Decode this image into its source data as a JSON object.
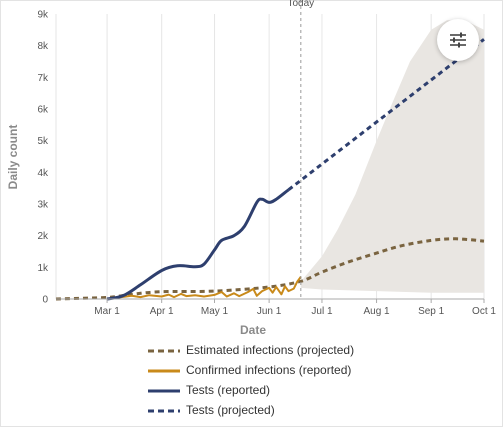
{
  "chart_data": {
    "type": "line",
    "xlabel": "Date",
    "ylabel": "Daily count",
    "x_range": [
      "2020-02-01",
      "2020-10-01"
    ],
    "ylim": [
      0,
      9000
    ],
    "grid": "vertical",
    "legend_position": "bottom",
    "x_ticks": [
      {
        "date": "2020-03-01",
        "label": "Mar 1"
      },
      {
        "date": "2020-04-01",
        "label": "Apr 1"
      },
      {
        "date": "2020-05-01",
        "label": "May 1"
      },
      {
        "date": "2020-06-01",
        "label": "Jun 1"
      },
      {
        "date": "2020-07-01",
        "label": "Jul 1"
      },
      {
        "date": "2020-08-01",
        "label": "Aug 1"
      },
      {
        "date": "2020-09-01",
        "label": "Sep 1"
      },
      {
        "date": "2020-10-01",
        "label": "Oct 1"
      }
    ],
    "y_ticks": [
      {
        "value": 0,
        "label": "0"
      },
      {
        "value": 1000,
        "label": "1k"
      },
      {
        "value": 2000,
        "label": "2k"
      },
      {
        "value": 3000,
        "label": "3k"
      },
      {
        "value": 4000,
        "label": "4k"
      },
      {
        "value": 5000,
        "label": "5k"
      },
      {
        "value": 6000,
        "label": "6k"
      },
      {
        "value": 7000,
        "label": "7k"
      },
      {
        "value": 8000,
        "label": "8k"
      },
      {
        "value": 9000,
        "label": "9k"
      }
    ],
    "today_line": {
      "date": "2020-06-19",
      "label": "Today"
    },
    "uncertainty_band": {
      "upper": [
        [
          "2020-06-19",
          550
        ],
        [
          "2020-07-01",
          1350
        ],
        [
          "2020-07-10",
          2200
        ],
        [
          "2020-07-20",
          3300
        ],
        [
          "2020-08-01",
          5000
        ],
        [
          "2020-08-10",
          6200
        ],
        [
          "2020-08-20",
          7500
        ],
        [
          "2020-09-01",
          8500
        ],
        [
          "2020-09-10",
          8800
        ],
        [
          "2020-09-20",
          8800
        ],
        [
          "2020-10-01",
          8500
        ]
      ],
      "lower": [
        [
          "2020-06-19",
          350
        ],
        [
          "2020-07-01",
          300
        ],
        [
          "2020-08-01",
          250
        ],
        [
          "2020-09-01",
          200
        ],
        [
          "2020-10-01",
          200
        ]
      ]
    },
    "series": [
      {
        "name": "Estimated infections (projected)",
        "color": "#7a6440",
        "style": "dashed",
        "points": [
          [
            "2020-02-01",
            0
          ],
          [
            "2020-03-01",
            50
          ],
          [
            "2020-03-15",
            150
          ],
          [
            "2020-04-01",
            230
          ],
          [
            "2020-05-01",
            250
          ],
          [
            "2020-06-01",
            380
          ],
          [
            "2020-06-19",
            560
          ],
          [
            "2020-07-01",
            850
          ],
          [
            "2020-07-15",
            1150
          ],
          [
            "2020-08-01",
            1450
          ],
          [
            "2020-08-15",
            1680
          ],
          [
            "2020-09-01",
            1850
          ],
          [
            "2020-09-15",
            1900
          ],
          [
            "2020-10-01",
            1830
          ]
        ]
      },
      {
        "name": "Confirmed infections (reported)",
        "color": "#c98a1a",
        "style": "solid",
        "points": [
          [
            "2020-03-01",
            10
          ],
          [
            "2020-03-08",
            50
          ],
          [
            "2020-03-15",
            100
          ],
          [
            "2020-03-20",
            60
          ],
          [
            "2020-03-25",
            120
          ],
          [
            "2020-04-01",
            80
          ],
          [
            "2020-04-05",
            140
          ],
          [
            "2020-04-08",
            60
          ],
          [
            "2020-04-12",
            160
          ],
          [
            "2020-04-15",
            90
          ],
          [
            "2020-04-20",
            120
          ],
          [
            "2020-04-25",
            80
          ],
          [
            "2020-05-01",
            130
          ],
          [
            "2020-05-05",
            220
          ],
          [
            "2020-05-08",
            80
          ],
          [
            "2020-05-12",
            180
          ],
          [
            "2020-05-15",
            90
          ],
          [
            "2020-05-20",
            220
          ],
          [
            "2020-05-23",
            320
          ],
          [
            "2020-05-25",
            100
          ],
          [
            "2020-05-28",
            250
          ],
          [
            "2020-06-01",
            350
          ],
          [
            "2020-06-03",
            200
          ],
          [
            "2020-06-05",
            380
          ],
          [
            "2020-06-08",
            150
          ],
          [
            "2020-06-10",
            400
          ],
          [
            "2020-06-12",
            250
          ],
          [
            "2020-06-15",
            330
          ],
          [
            "2020-06-17",
            550
          ],
          [
            "2020-06-19",
            700
          ]
        ]
      },
      {
        "name": "Tests (reported)",
        "color": "#2e3f6e",
        "style": "solid",
        "points": [
          [
            "2020-03-01",
            0
          ],
          [
            "2020-03-10",
            100
          ],
          [
            "2020-03-20",
            450
          ],
          [
            "2020-04-01",
            900
          ],
          [
            "2020-04-10",
            1050
          ],
          [
            "2020-04-20",
            1020
          ],
          [
            "2020-04-25",
            1100
          ],
          [
            "2020-05-01",
            1550
          ],
          [
            "2020-05-05",
            1850
          ],
          [
            "2020-05-12",
            2000
          ],
          [
            "2020-05-18",
            2300
          ],
          [
            "2020-05-25",
            3050
          ],
          [
            "2020-05-28",
            3150
          ],
          [
            "2020-06-01",
            3050
          ],
          [
            "2020-06-05",
            3150
          ],
          [
            "2020-06-12",
            3450
          ]
        ]
      },
      {
        "name": "Tests (projected)",
        "color": "#2e3f6e",
        "style": "dashed",
        "points": [
          [
            "2020-06-12",
            3450
          ],
          [
            "2020-10-01",
            8200
          ]
        ]
      }
    ]
  }
}
